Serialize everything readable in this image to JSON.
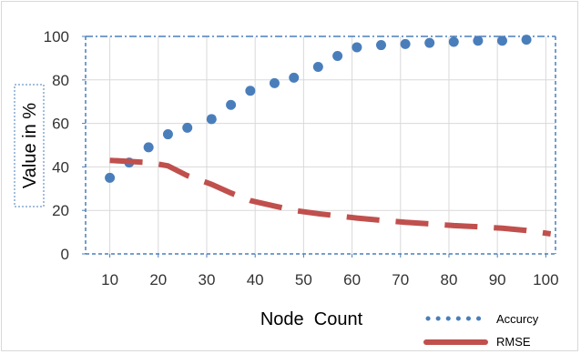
{
  "chart_data": {
    "type": "line",
    "title": "",
    "xlabel": "Node  Count",
    "ylabel": "Value in %",
    "xlim": [
      5,
      102
    ],
    "ylim": [
      0,
      100
    ],
    "x_ticks": [
      "10",
      "20",
      "30",
      "40",
      "50",
      "60",
      "70",
      "80",
      "90",
      "100"
    ],
    "y_ticks": [
      "0",
      "20",
      "40",
      "60",
      "80",
      "100"
    ],
    "grid": true,
    "legend": "bottom-right",
    "series": [
      {
        "name": "Accurcy",
        "style": "dotted",
        "color": "#4a7ebb",
        "x": [
          10,
          14,
          18,
          22,
          26,
          31,
          35,
          39,
          44,
          48,
          53,
          57,
          61,
          66,
          71,
          76,
          81,
          86,
          91,
          96
        ],
        "y": [
          35,
          42,
          49,
          55,
          58,
          62,
          68.5,
          75,
          78.5,
          81,
          86,
          91,
          95,
          96,
          96.5,
          97,
          97.5,
          98,
          98,
          98.5
        ]
      },
      {
        "name": "RMSE",
        "style": "dashed",
        "color": "#c0504d",
        "x": [
          10,
          14,
          18,
          22,
          26,
          31,
          35,
          39,
          44,
          48,
          53,
          57,
          61,
          66,
          71,
          76,
          81,
          86,
          91,
          96,
          101
        ],
        "y": [
          43,
          42.5,
          42,
          40.5,
          36,
          32,
          28,
          24.5,
          22,
          20,
          18.5,
          17.5,
          16.5,
          15.5,
          14.5,
          13.8,
          13,
          12.5,
          11.8,
          10.8,
          9.2
        ]
      }
    ]
  }
}
